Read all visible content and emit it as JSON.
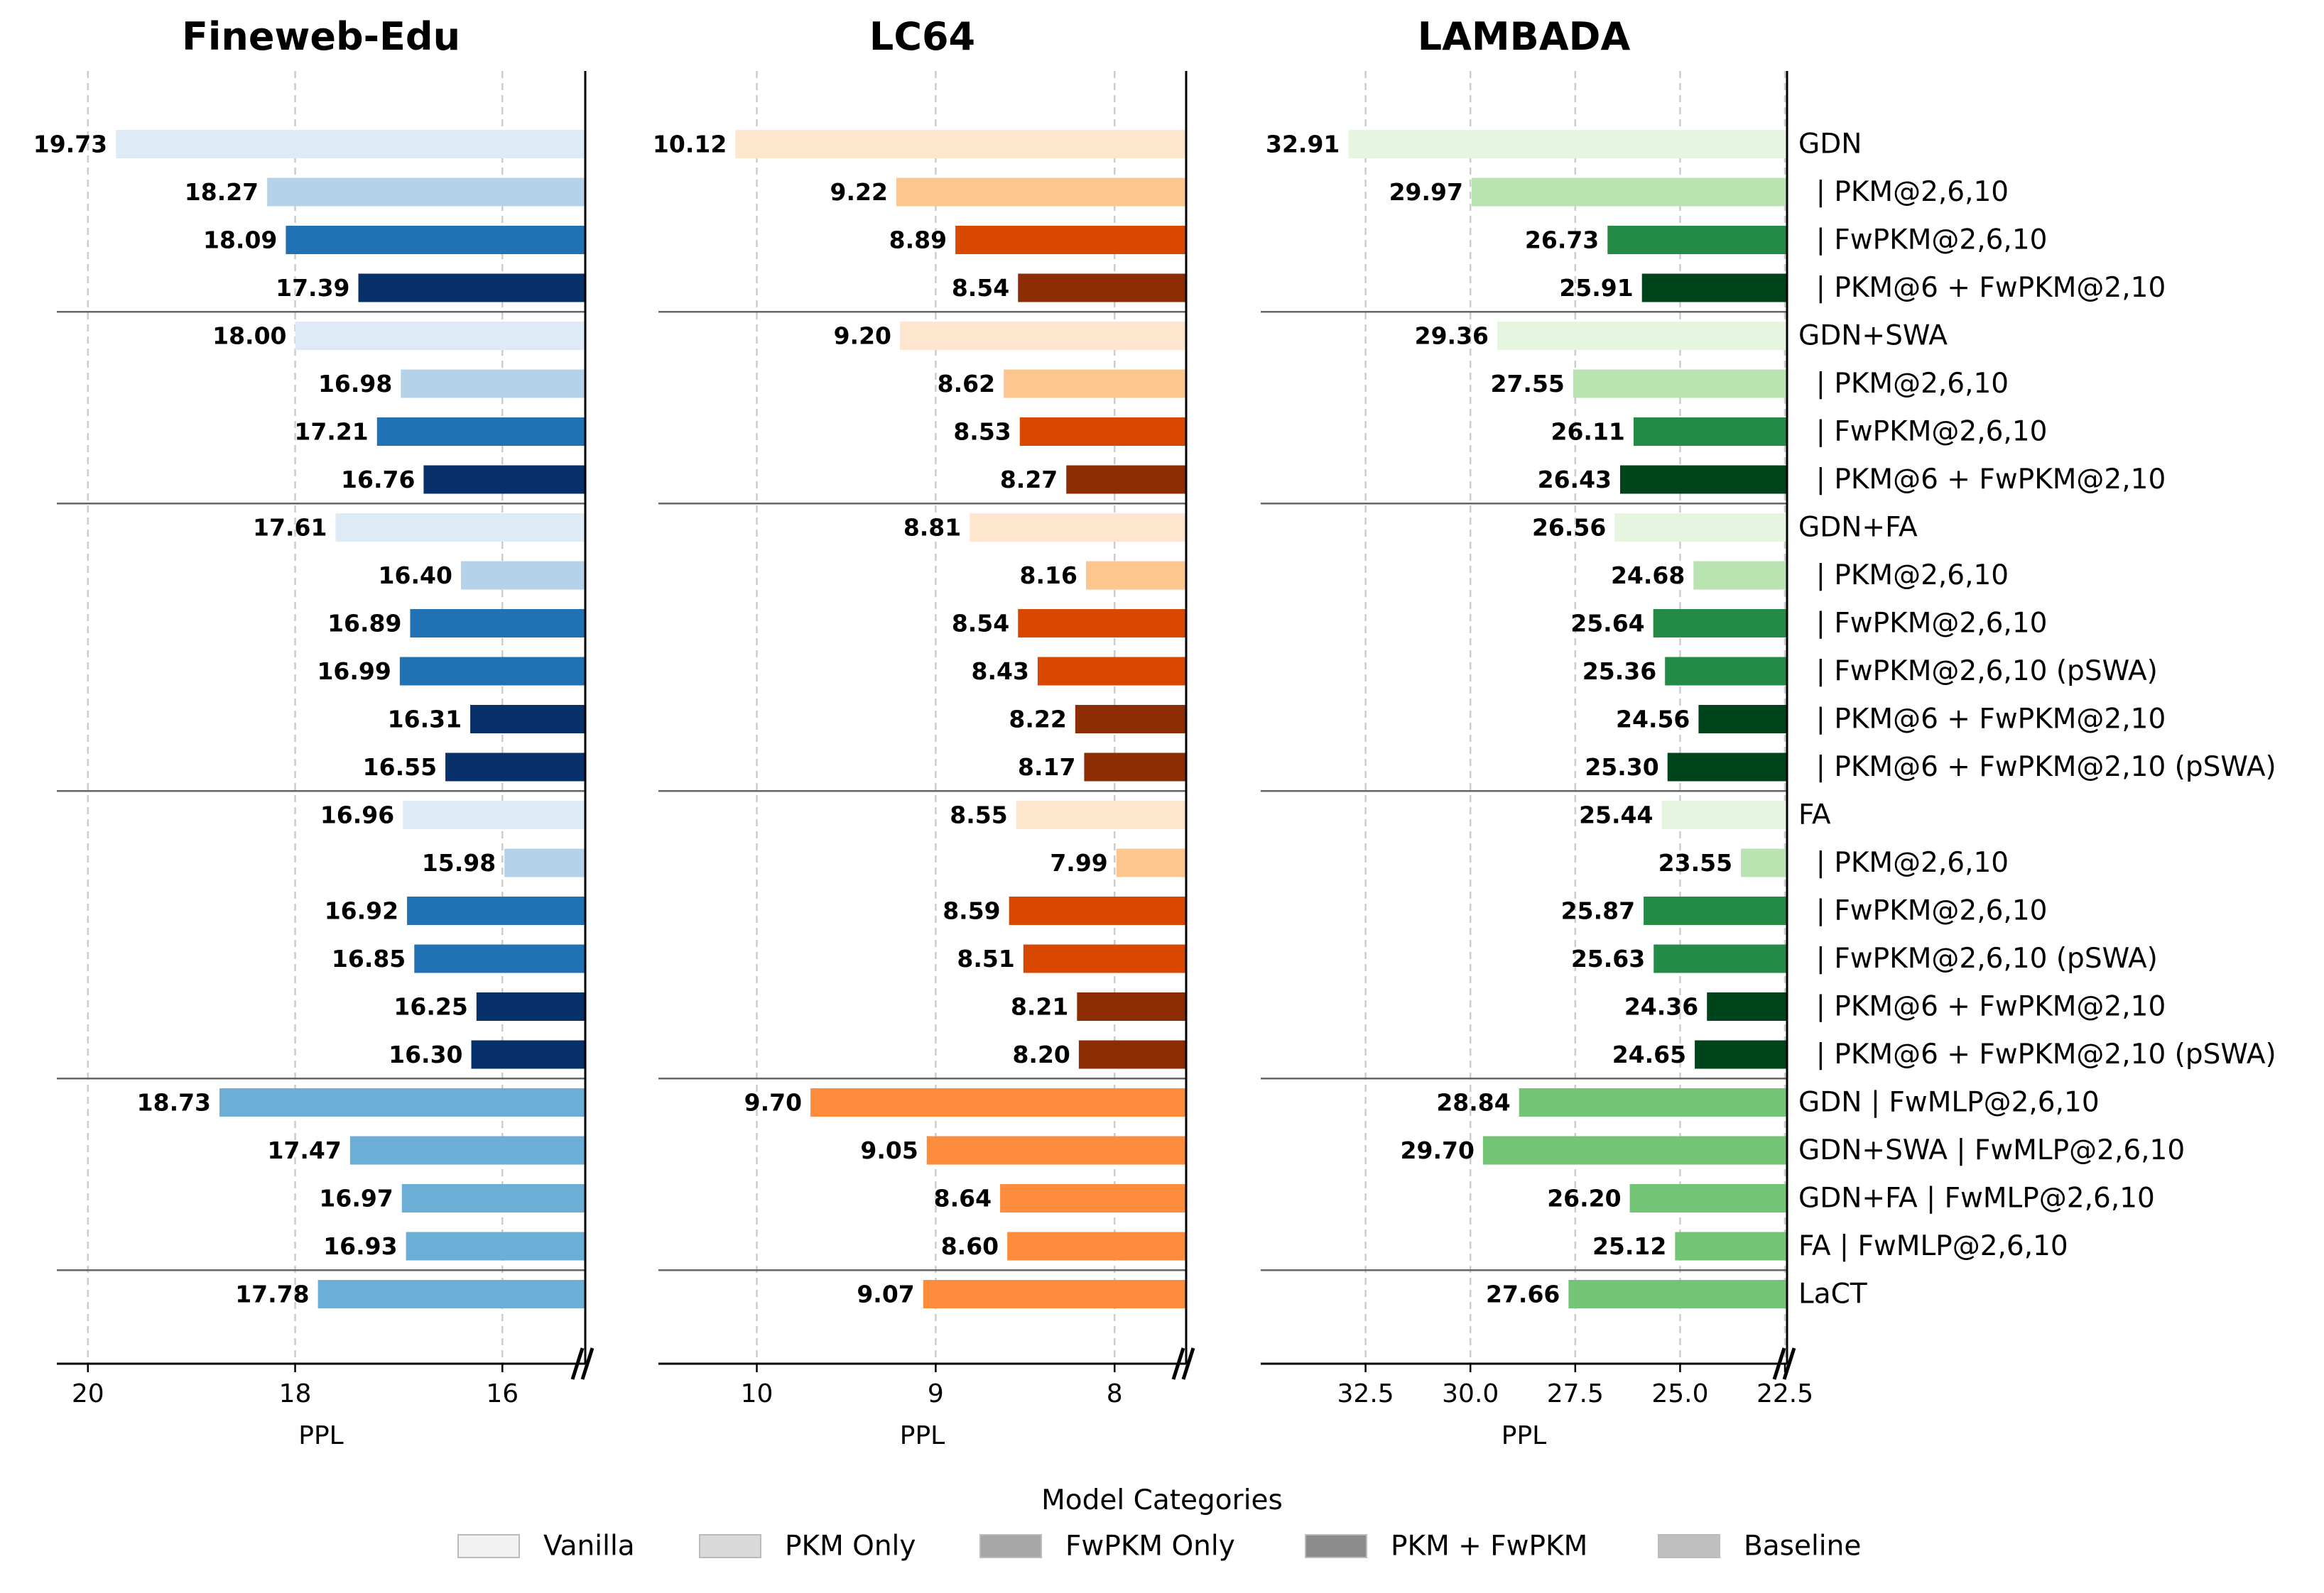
{
  "row_labels": [
    "GDN",
    "| PKM@2,6,10",
    "| FwPKM@2,6,10",
    "| PKM@6 + FwPKM@2,10",
    "GDN+SWA",
    "| PKM@2,6,10",
    "| FwPKM@2,6,10",
    "| PKM@6 + FwPKM@2,10",
    "GDN+FA",
    "| PKM@2,6,10",
    "| FwPKM@2,6,10",
    "| FwPKM@2,6,10 (pSWA)",
    "| PKM@6 + FwPKM@2,10",
    "| PKM@6 + FwPKM@2,10 (pSWA)",
    "FA",
    "| PKM@2,6,10",
    "| FwPKM@2,6,10",
    "| FwPKM@2,6,10 (pSWA)",
    "| PKM@6 + FwPKM@2,10",
    "| PKM@6 + FwPKM@2,10 (pSWA)",
    "GDN | FwMLP@2,6,10",
    "GDN+SWA | FwMLP@2,6,10",
    "GDN+FA | FwMLP@2,6,10",
    "FA | FwMLP@2,6,10",
    "LaCT"
  ],
  "row_categories": [
    "Vanilla",
    "PKM Only",
    "FwPKM Only",
    "PKM + FwPKM",
    "Vanilla",
    "PKM Only",
    "FwPKM Only",
    "PKM + FwPKM",
    "Vanilla",
    "PKM Only",
    "FwPKM Only",
    "FwPKM Only",
    "PKM + FwPKM",
    "PKM + FwPKM",
    "Vanilla",
    "PKM Only",
    "FwPKM Only",
    "FwPKM Only",
    "PKM + FwPKM",
    "PKM + FwPKM",
    "Baseline",
    "Baseline",
    "Baseline",
    "Baseline",
    "Baseline"
  ],
  "group_breaks_after": [
    3,
    7,
    13,
    19,
    23
  ],
  "legend": {
    "title": "Model Categories",
    "items": [
      {
        "label": "Vanilla",
        "color": "#f2f2f2"
      },
      {
        "label": "PKM Only",
        "color": "#d9d9d9"
      },
      {
        "label": "FwPKM Only",
        "color": "#a6a6a6"
      },
      {
        "label": "PKM + FwPKM",
        "color": "#8c8c8c"
      },
      {
        "label": "Baseline",
        "color": "#bfbfbf"
      }
    ]
  },
  "chart_data": [
    {
      "type": "bar",
      "orientation": "horizontal",
      "title": "Fineweb-Edu",
      "xlabel": "PPL",
      "xlim": [
        20.3,
        15.2
      ],
      "xticks": [
        20,
        18,
        16
      ],
      "xtick_labels": [
        "20",
        "18",
        "16"
      ],
      "grid": "vertical dashed",
      "colors": {
        "Vanilla": "#deebf7",
        "PKM Only": "#b4d3ea",
        "FwPKM Only": "#2171b5",
        "PKM + FwPKM": "#08306b",
        "Baseline": "#6baed6"
      },
      "values": [
        19.73,
        18.27,
        18.09,
        17.39,
        18.0,
        16.98,
        17.21,
        16.76,
        17.61,
        16.4,
        16.89,
        16.99,
        16.31,
        16.55,
        16.96,
        15.98,
        16.92,
        16.85,
        16.25,
        16.3,
        18.73,
        17.47,
        16.97,
        16.93,
        17.78
      ],
      "value_labels": [
        "19.73",
        "18.27",
        "18.09",
        "17.39",
        "18.00",
        "16.98",
        "17.21",
        "16.76",
        "17.61",
        "16.40",
        "16.89",
        "16.99",
        "16.31",
        "16.55",
        "16.96",
        "15.98",
        "16.92",
        "16.85",
        "16.25",
        "16.30",
        "18.73",
        "17.47",
        "16.97",
        "16.93",
        "17.78"
      ]
    },
    {
      "type": "bar",
      "orientation": "horizontal",
      "title": "LC64",
      "xlabel": "PPL",
      "xlim": [
        10.55,
        7.6
      ],
      "xticks": [
        10,
        9,
        8
      ],
      "xtick_labels": [
        "10",
        "9",
        "8"
      ],
      "grid": "vertical dashed",
      "colors": {
        "Vanilla": "#fee6ce",
        "PKM Only": "#fdc68e",
        "FwPKM Only": "#d94801",
        "PKM + FwPKM": "#8c2d04",
        "Baseline": "#fd8d3c"
      },
      "values": [
        10.12,
        9.22,
        8.89,
        8.54,
        9.2,
        8.62,
        8.53,
        8.27,
        8.81,
        8.16,
        8.54,
        8.43,
        8.22,
        8.17,
        8.55,
        7.99,
        8.59,
        8.51,
        8.21,
        8.2,
        9.7,
        9.05,
        8.64,
        8.6,
        9.07
      ],
      "value_labels": [
        "10.12",
        "9.22",
        "8.89",
        "8.54",
        "9.20",
        "8.62",
        "8.53",
        "8.27",
        "8.81",
        "8.16",
        "8.54",
        "8.43",
        "8.22",
        "8.17",
        "8.55",
        "7.99",
        "8.59",
        "8.51",
        "8.21",
        "8.20",
        "9.70",
        "9.05",
        "8.64",
        "8.60",
        "9.07"
      ]
    },
    {
      "type": "bar",
      "orientation": "horizontal",
      "title": "LAMBADA",
      "xlabel": "PPL",
      "xlim": [
        35.0,
        22.45
      ],
      "xticks": [
        32.5,
        30.0,
        27.5,
        25.0,
        22.5
      ],
      "xtick_labels": [
        "32.5",
        "30.0",
        "27.5",
        "25.0",
        "22.5"
      ],
      "grid": "vertical dashed",
      "colors": {
        "Vanilla": "#e5f5e0",
        "PKM Only": "#b9e3b1",
        "FwPKM Only": "#238b45",
        "PKM + FwPKM": "#00441b",
        "Baseline": "#74c476"
      },
      "values": [
        32.91,
        29.97,
        26.73,
        25.91,
        29.36,
        27.55,
        26.11,
        26.43,
        26.56,
        24.68,
        25.64,
        25.36,
        24.56,
        25.3,
        25.44,
        23.55,
        25.87,
        25.63,
        24.36,
        24.65,
        28.84,
        29.7,
        26.2,
        25.12,
        27.66
      ],
      "value_labels": [
        "32.91",
        "29.97",
        "26.73",
        "25.91",
        "29.36",
        "27.55",
        "26.11",
        "26.43",
        "26.56",
        "24.68",
        "25.64",
        "25.36",
        "24.56",
        "25.30",
        "25.44",
        "23.55",
        "25.87",
        "25.63",
        "24.36",
        "24.65",
        "28.84",
        "29.70",
        "26.20",
        "25.12",
        "27.66"
      ]
    }
  ]
}
